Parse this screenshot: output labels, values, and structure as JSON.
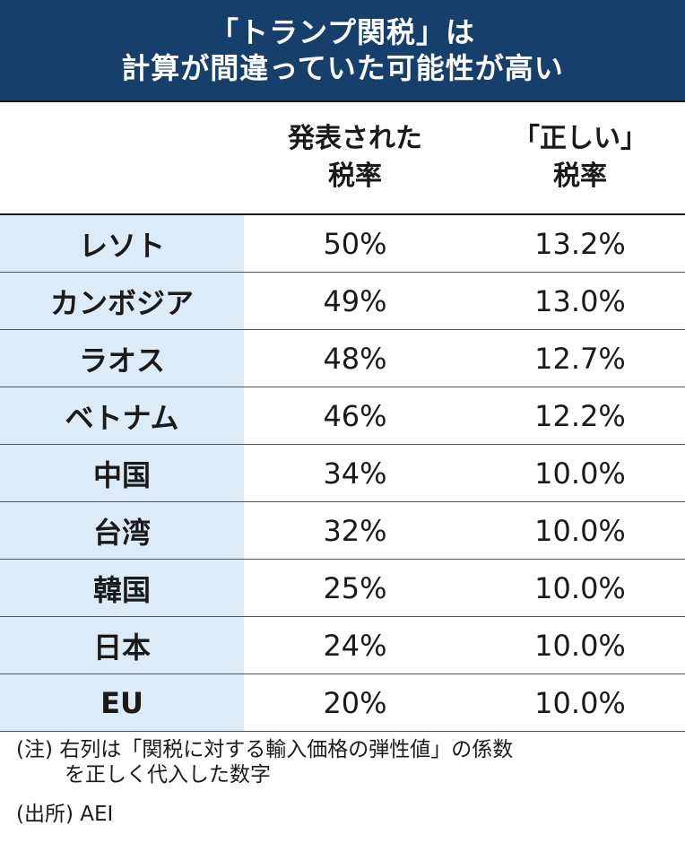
{
  "title": {
    "line1": "「トランプ関税」は",
    "line2": "計算が間違っていた可能性が高い"
  },
  "columns": {
    "published": [
      "発表された",
      "税率"
    ],
    "correct": [
      "「正しい」",
      "税率"
    ]
  },
  "chart_data": {
    "type": "table",
    "headers": [
      "",
      "発表された税率",
      "「正しい」税率"
    ],
    "rows": [
      {
        "name": "レソト",
        "published": "50%",
        "correct": "13.2%"
      },
      {
        "name": "カンボジア",
        "published": "49%",
        "correct": "13.0%"
      },
      {
        "name": "ラオス",
        "published": "48%",
        "correct": "12.7%"
      },
      {
        "name": "ベトナム",
        "published": "46%",
        "correct": "12.2%"
      },
      {
        "name": "中国",
        "published": "34%",
        "correct": "10.0%"
      },
      {
        "name": "台湾",
        "published": "32%",
        "correct": "10.0%"
      },
      {
        "name": "韓国",
        "published": "25%",
        "correct": "10.0%"
      },
      {
        "name": "日本",
        "published": "24%",
        "correct": "10.0%"
      },
      {
        "name": "EU",
        "published": "20%",
        "correct": "10.0%"
      }
    ]
  },
  "note": {
    "line1": "(注) 右列は「関税に対する輸入価格の弾性値」の係数",
    "line2": "を正しく代入した数字"
  },
  "source": "(出所) AEI",
  "colors": {
    "title_bg": "#173f6c",
    "name_col_bg": "#dcebf8"
  }
}
